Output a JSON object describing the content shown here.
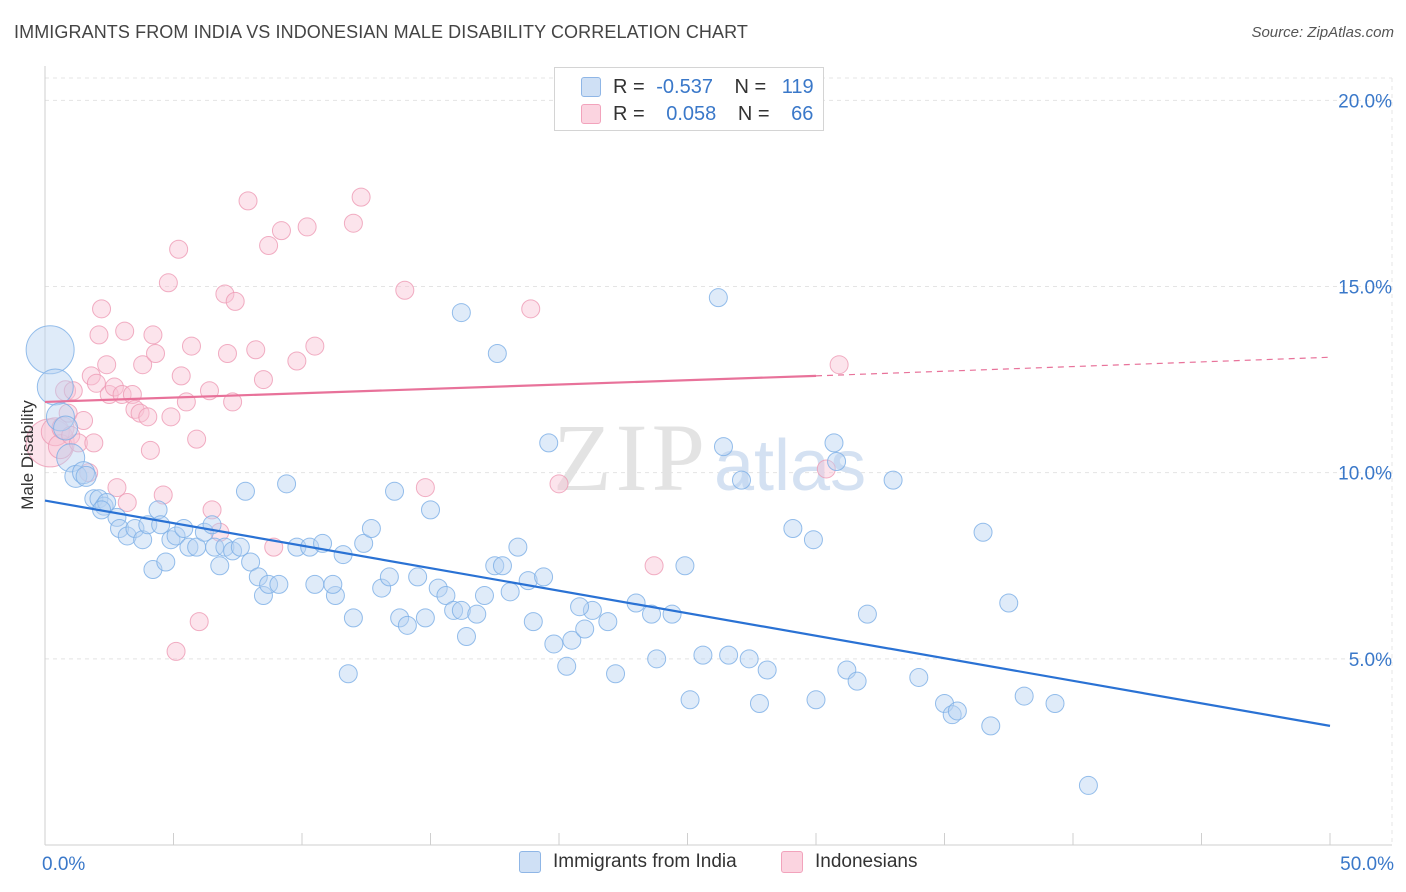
{
  "title": "IMMIGRANTS FROM INDIA VS INDONESIAN MALE DISABILITY CORRELATION CHART",
  "source": "Source: ZipAtlas.com",
  "watermark": {
    "zip": "ZIP",
    "atlas": "atlas"
  },
  "legend_top": [
    {
      "r_label": "R =",
      "r_value": "-0.537",
      "n_label": "N =",
      "n_value": "119",
      "color": "#a9c9ef"
    },
    {
      "r_label": "R =",
      "r_value": "0.058",
      "n_label": "N =",
      "n_value": "66",
      "color": "#f6b9cc"
    }
  ],
  "legend_bottom": [
    {
      "label": "Immigrants from India",
      "color": "#a9c9ef"
    },
    {
      "label": "Indonesians",
      "color": "#f6b9cc"
    }
  ],
  "chart_data": {
    "type": "scatter",
    "title": "IMMIGRANTS FROM INDIA VS INDONESIAN MALE DISABILITY CORRELATION CHART",
    "xlabel": "",
    "ylabel": "Male Disability",
    "xlim": [
      0,
      50
    ],
    "ylim": [
      0,
      20.6
    ],
    "x_tick_labels": [
      "0.0%",
      "50.0%"
    ],
    "y_ticks": [
      5,
      10,
      15,
      20
    ],
    "y_tick_labels": [
      "5.0%",
      "10.0%",
      "15.0%",
      "20.0%"
    ],
    "grid": true,
    "legend_position": "top-center",
    "series": [
      {
        "name": "Immigrants from India",
        "color": "#6fa6e6",
        "trend": {
          "x": [
            0,
            50
          ],
          "y": [
            9.25,
            3.2
          ]
        },
        "points": [
          [
            0.2,
            13.3
          ],
          [
            0.4,
            12.3
          ],
          [
            0.6,
            11.5
          ],
          [
            0.8,
            11.2
          ],
          [
            1.0,
            10.4
          ],
          [
            1.2,
            9.9
          ],
          [
            1.5,
            10.0
          ],
          [
            1.6,
            9.9
          ],
          [
            1.9,
            9.3
          ],
          [
            2.1,
            9.3
          ],
          [
            2.3,
            9.1
          ],
          [
            2.4,
            9.2
          ],
          [
            2.8,
            8.8
          ],
          [
            2.9,
            8.5
          ],
          [
            3.2,
            8.3
          ],
          [
            3.5,
            8.5
          ],
          [
            3.8,
            8.2
          ],
          [
            4.0,
            8.6
          ],
          [
            4.2,
            7.4
          ],
          [
            4.4,
            9.0
          ],
          [
            4.5,
            8.6
          ],
          [
            4.7,
            7.6
          ],
          [
            4.9,
            8.2
          ],
          [
            5.1,
            8.3
          ],
          [
            5.4,
            8.5
          ],
          [
            5.6,
            8.0
          ],
          [
            5.9,
            8.0
          ],
          [
            6.2,
            8.4
          ],
          [
            6.5,
            8.6
          ],
          [
            6.6,
            8.0
          ],
          [
            6.8,
            7.5
          ],
          [
            7.0,
            8.0
          ],
          [
            7.3,
            7.9
          ],
          [
            7.6,
            8.0
          ],
          [
            7.8,
            9.5
          ],
          [
            8.0,
            7.6
          ],
          [
            8.3,
            7.2
          ],
          [
            8.5,
            6.7
          ],
          [
            8.7,
            7.0
          ],
          [
            9.1,
            7.0
          ],
          [
            9.4,
            9.7
          ],
          [
            9.8,
            8.0
          ],
          [
            10.3,
            8.0
          ],
          [
            10.5,
            7.0
          ],
          [
            10.8,
            8.1
          ],
          [
            11.3,
            6.7
          ],
          [
            11.6,
            7.8
          ],
          [
            11.2,
            7.0
          ],
          [
            11.8,
            4.6
          ],
          [
            12.0,
            6.1
          ],
          [
            12.4,
            8.1
          ],
          [
            12.7,
            8.5
          ],
          [
            13.1,
            6.9
          ],
          [
            13.4,
            7.2
          ],
          [
            13.6,
            9.5
          ],
          [
            13.8,
            6.1
          ],
          [
            14.1,
            5.9
          ],
          [
            14.5,
            7.2
          ],
          [
            14.8,
            6.1
          ],
          [
            15.0,
            9.0
          ],
          [
            15.3,
            6.9
          ],
          [
            15.6,
            6.7
          ],
          [
            15.9,
            6.3
          ],
          [
            16.2,
            6.3
          ],
          [
            16.4,
            5.6
          ],
          [
            16.8,
            6.2
          ],
          [
            17.1,
            6.7
          ],
          [
            17.5,
            7.5
          ],
          [
            17.8,
            7.5
          ],
          [
            18.1,
            6.8
          ],
          [
            18.4,
            8.0
          ],
          [
            18.8,
            7.1
          ],
          [
            19.0,
            6.0
          ],
          [
            19.4,
            7.2
          ],
          [
            19.8,
            5.4
          ],
          [
            20.3,
            4.8
          ],
          [
            20.5,
            5.5
          ],
          [
            21.0,
            5.8
          ],
          [
            21.3,
            6.3
          ],
          [
            21.9,
            6.0
          ],
          [
            22.2,
            4.6
          ],
          [
            23.0,
            6.5
          ],
          [
            23.6,
            6.2
          ],
          [
            23.8,
            5.0
          ],
          [
            24.4,
            6.2
          ],
          [
            24.9,
            7.5
          ],
          [
            25.1,
            3.9
          ],
          [
            25.6,
            5.1
          ],
          [
            26.4,
            10.7
          ],
          [
            26.6,
            5.1
          ],
          [
            27.1,
            9.8
          ],
          [
            27.4,
            5.0
          ],
          [
            27.8,
            3.8
          ],
          [
            28.1,
            4.7
          ],
          [
            16.2,
            14.3
          ],
          [
            17.6,
            13.2
          ],
          [
            19.6,
            10.8
          ],
          [
            20.8,
            6.4
          ],
          [
            26.2,
            14.7
          ],
          [
            29.1,
            8.5
          ],
          [
            29.9,
            8.2
          ],
          [
            30.0,
            3.9
          ],
          [
            30.7,
            10.8
          ],
          [
            30.8,
            10.3
          ],
          [
            31.2,
            4.7
          ],
          [
            31.6,
            4.4
          ],
          [
            32.0,
            6.2
          ],
          [
            33.0,
            9.8
          ],
          [
            34.0,
            4.5
          ],
          [
            35.0,
            3.8
          ],
          [
            35.3,
            3.5
          ],
          [
            35.5,
            3.6
          ],
          [
            36.5,
            8.4
          ],
          [
            36.8,
            3.2
          ],
          [
            37.5,
            6.5
          ],
          [
            38.1,
            4.0
          ],
          [
            39.3,
            3.8
          ],
          [
            40.6,
            1.6
          ],
          [
            2.2,
            9.0
          ]
        ],
        "sizes": [
          24,
          18,
          14,
          12,
          14,
          11,
          11,
          10
        ]
      },
      {
        "name": "Indonesians",
        "color": "#f29bb5",
        "trend": {
          "x": [
            0,
            30,
            50
          ],
          "y": [
            11.9,
            12.6,
            13.1
          ]
        },
        "points": [
          [
            0.2,
            10.8
          ],
          [
            0.4,
            11.1
          ],
          [
            0.6,
            10.7
          ],
          [
            0.7,
            11.2
          ],
          [
            0.8,
            12.2
          ],
          [
            0.9,
            11.6
          ],
          [
            1.0,
            11.0
          ],
          [
            1.1,
            12.2
          ],
          [
            1.3,
            10.8
          ],
          [
            1.5,
            11.4
          ],
          [
            1.7,
            10.0
          ],
          [
            1.8,
            12.6
          ],
          [
            1.9,
            10.8
          ],
          [
            2.0,
            12.4
          ],
          [
            2.1,
            13.7
          ],
          [
            2.2,
            14.4
          ],
          [
            2.4,
            12.9
          ],
          [
            2.5,
            12.1
          ],
          [
            2.7,
            12.3
          ],
          [
            2.8,
            9.6
          ],
          [
            3.0,
            12.1
          ],
          [
            3.1,
            13.8
          ],
          [
            3.2,
            9.2
          ],
          [
            3.4,
            12.1
          ],
          [
            3.5,
            11.7
          ],
          [
            3.7,
            11.6
          ],
          [
            3.8,
            12.9
          ],
          [
            4.0,
            11.5
          ],
          [
            4.1,
            10.6
          ],
          [
            4.2,
            13.7
          ],
          [
            4.3,
            13.2
          ],
          [
            4.6,
            9.4
          ],
          [
            4.8,
            15.1
          ],
          [
            5.1,
            5.2
          ],
          [
            5.2,
            16.0
          ],
          [
            5.3,
            12.6
          ],
          [
            5.5,
            11.9
          ],
          [
            5.7,
            13.4
          ],
          [
            5.9,
            10.9
          ],
          [
            6.0,
            6.0
          ],
          [
            6.4,
            12.2
          ],
          [
            6.5,
            9.0
          ],
          [
            6.8,
            8.4
          ],
          [
            7.0,
            14.8
          ],
          [
            7.1,
            13.2
          ],
          [
            7.3,
            11.9
          ],
          [
            7.4,
            14.6
          ],
          [
            7.9,
            17.3
          ],
          [
            8.2,
            13.3
          ],
          [
            8.5,
            12.5
          ],
          [
            8.7,
            16.1
          ],
          [
            8.9,
            8.0
          ],
          [
            9.2,
            16.5
          ],
          [
            9.8,
            13.0
          ],
          [
            10.2,
            16.6
          ],
          [
            10.5,
            13.4
          ],
          [
            12.0,
            16.7
          ],
          [
            12.3,
            17.4
          ],
          [
            14.0,
            14.9
          ],
          [
            14.8,
            9.6
          ],
          [
            18.9,
            14.4
          ],
          [
            20.0,
            9.7
          ],
          [
            23.7,
            7.5
          ],
          [
            30.4,
            10.1
          ],
          [
            30.9,
            12.9
          ],
          [
            4.9,
            11.5
          ]
        ],
        "sizes": [
          24,
          14,
          12,
          11,
          10
        ]
      }
    ]
  }
}
